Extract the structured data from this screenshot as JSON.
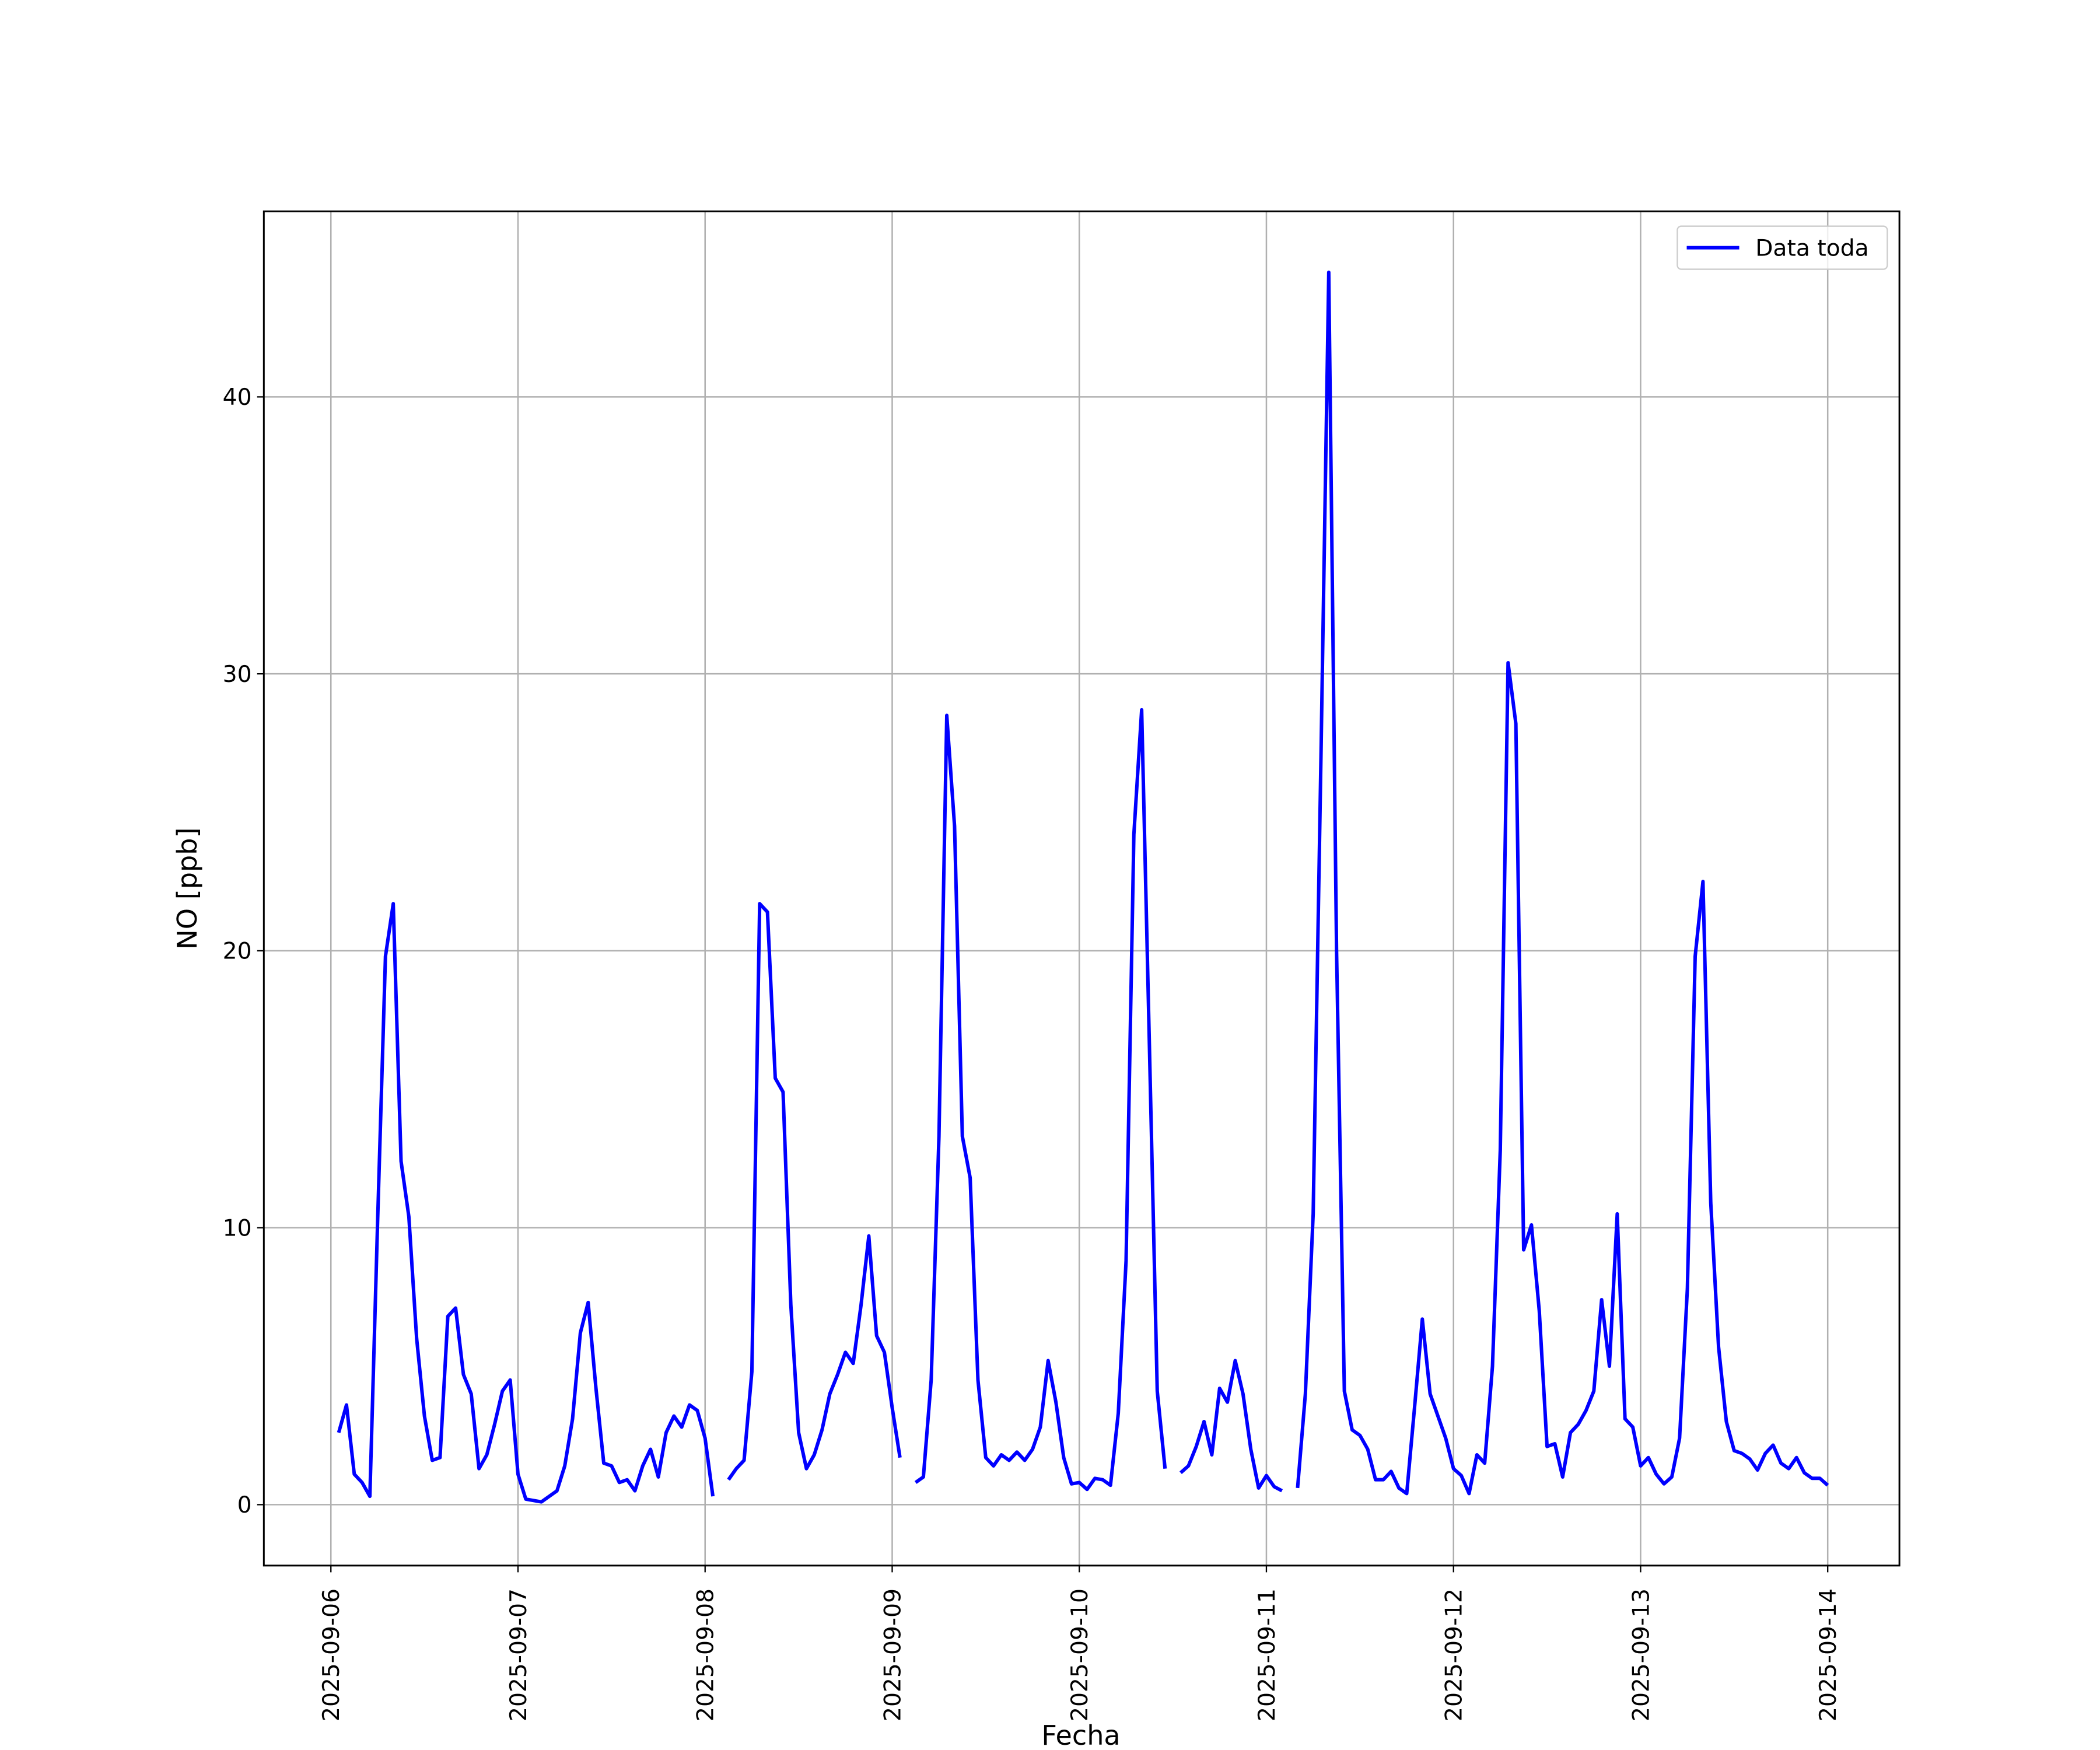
{
  "chart_data": {
    "type": "line",
    "xlabel": "Fecha",
    "ylabel": "NO [ppb]",
    "x": [
      "2025-09-06 01:00",
      "2025-09-06 02:00",
      "2025-09-06 03:00",
      "2025-09-06 04:00",
      "2025-09-06 05:00",
      "2025-09-06 06:00",
      "2025-09-06 07:00",
      "2025-09-06 08:00",
      "2025-09-06 09:00",
      "2025-09-06 10:00",
      "2025-09-06 11:00",
      "2025-09-06 12:00",
      "2025-09-06 13:00",
      "2025-09-06 14:00",
      "2025-09-06 15:00",
      "2025-09-06 16:00",
      "2025-09-06 17:00",
      "2025-09-06 18:00",
      "2025-09-06 19:00",
      "2025-09-06 20:00",
      "2025-09-06 21:00",
      "2025-09-06 22:00",
      "2025-09-06 23:00",
      "2025-09-07 00:00",
      "2025-09-07 01:00",
      "2025-09-07 02:00",
      "2025-09-07 03:00",
      "2025-09-07 04:00",
      "2025-09-07 05:00",
      "2025-09-07 06:00",
      "2025-09-07 07:00",
      "2025-09-07 08:00",
      "2025-09-07 09:00",
      "2025-09-07 10:00",
      "2025-09-07 11:00",
      "2025-09-07 12:00",
      "2025-09-07 13:00",
      "2025-09-07 14:00",
      "2025-09-07 15:00",
      "2025-09-07 16:00",
      "2025-09-07 17:00",
      "2025-09-07 18:00",
      "2025-09-07 19:00",
      "2025-09-07 20:00",
      "2025-09-07 21:00",
      "2025-09-07 22:00",
      "2025-09-07 23:00",
      "2025-09-08 00:00",
      "2025-09-08 01:00",
      "2025-09-08 02:00",
      "2025-09-08 03:00",
      "2025-09-08 04:00",
      "2025-09-08 05:00",
      "2025-09-08 06:00",
      "2025-09-08 07:00",
      "2025-09-08 08:00",
      "2025-09-08 09:00",
      "2025-09-08 10:00",
      "2025-09-08 11:00",
      "2025-09-08 12:00",
      "2025-09-08 13:00",
      "2025-09-08 14:00",
      "2025-09-08 15:00",
      "2025-09-08 16:00",
      "2025-09-08 17:00",
      "2025-09-08 18:00",
      "2025-09-08 19:00",
      "2025-09-08 20:00",
      "2025-09-08 21:00",
      "2025-09-08 22:00",
      "2025-09-08 23:00",
      "2025-09-09 00:00",
      "2025-09-09 01:00",
      "2025-09-09 02:00",
      "2025-09-09 03:00",
      "2025-09-09 04:00",
      "2025-09-09 05:00",
      "2025-09-09 06:00",
      "2025-09-09 07:00",
      "2025-09-09 08:00",
      "2025-09-09 09:00",
      "2025-09-09 10:00",
      "2025-09-09 11:00",
      "2025-09-09 12:00",
      "2025-09-09 13:00",
      "2025-09-09 14:00",
      "2025-09-09 15:00",
      "2025-09-09 16:00",
      "2025-09-09 17:00",
      "2025-09-09 18:00",
      "2025-09-09 19:00",
      "2025-09-09 20:00",
      "2025-09-09 21:00",
      "2025-09-09 22:00",
      "2025-09-09 23:00",
      "2025-09-10 00:00",
      "2025-09-10 01:00",
      "2025-09-10 02:00",
      "2025-09-10 03:00",
      "2025-09-10 04:00",
      "2025-09-10 05:00",
      "2025-09-10 06:00",
      "2025-09-10 07:00",
      "2025-09-10 08:00",
      "2025-09-10 09:00",
      "2025-09-10 10:00",
      "2025-09-10 11:00",
      "2025-09-10 12:00",
      "2025-09-10 13:00",
      "2025-09-10 14:00",
      "2025-09-10 15:00",
      "2025-09-10 16:00",
      "2025-09-10 17:00",
      "2025-09-10 18:00",
      "2025-09-10 19:00",
      "2025-09-10 20:00",
      "2025-09-10 21:00",
      "2025-09-10 22:00",
      "2025-09-10 23:00",
      "2025-09-11 00:00",
      "2025-09-11 01:00",
      "2025-09-11 02:00",
      "2025-09-11 03:00",
      "2025-09-11 04:00",
      "2025-09-11 05:00",
      "2025-09-11 06:00",
      "2025-09-11 07:00",
      "2025-09-11 08:00",
      "2025-09-11 09:00",
      "2025-09-11 10:00",
      "2025-09-11 11:00",
      "2025-09-11 12:00",
      "2025-09-11 13:00",
      "2025-09-11 14:00",
      "2025-09-11 15:00",
      "2025-09-11 16:00",
      "2025-09-11 17:00",
      "2025-09-11 18:00",
      "2025-09-11 19:00",
      "2025-09-11 20:00",
      "2025-09-11 21:00",
      "2025-09-11 22:00",
      "2025-09-11 23:00",
      "2025-09-12 00:00",
      "2025-09-12 01:00",
      "2025-09-12 02:00",
      "2025-09-12 03:00",
      "2025-09-12 04:00",
      "2025-09-12 05:00",
      "2025-09-12 06:00",
      "2025-09-12 07:00",
      "2025-09-12 08:00",
      "2025-09-12 09:00",
      "2025-09-12 10:00",
      "2025-09-12 11:00",
      "2025-09-12 12:00",
      "2025-09-12 13:00",
      "2025-09-12 14:00",
      "2025-09-12 15:00",
      "2025-09-12 16:00",
      "2025-09-12 17:00",
      "2025-09-12 18:00",
      "2025-09-12 19:00",
      "2025-09-12 20:00",
      "2025-09-12 21:00",
      "2025-09-12 22:00",
      "2025-09-12 23:00",
      "2025-09-13 00:00",
      "2025-09-13 01:00",
      "2025-09-13 02:00",
      "2025-09-13 03:00",
      "2025-09-13 04:00",
      "2025-09-13 05:00",
      "2025-09-13 06:00",
      "2025-09-13 07:00",
      "2025-09-13 08:00",
      "2025-09-13 09:00",
      "2025-09-13 10:00",
      "2025-09-13 11:00",
      "2025-09-13 12:00",
      "2025-09-13 13:00",
      "2025-09-13 14:00",
      "2025-09-13 15:00",
      "2025-09-13 16:00",
      "2025-09-13 17:00",
      "2025-09-13 18:00",
      "2025-09-13 19:00",
      "2025-09-13 20:00",
      "2025-09-13 21:00",
      "2025-09-13 22:00",
      "2025-09-13 23:00",
      "2025-09-14 00:00"
    ],
    "series": [
      {
        "name": "Data toda",
        "color": "#0000ff",
        "values": [
          2.6,
          3.6,
          1.1,
          0.8,
          0.3,
          10.3,
          19.8,
          21.7,
          12.4,
          10.4,
          6.0,
          3.2,
          1.6,
          1.7,
          6.8,
          7.1,
          4.7,
          4.0,
          1.3,
          1.8,
          2.9,
          4.1,
          4.5,
          1.1,
          0.2,
          0.15,
          0.1,
          0.3,
          0.5,
          1.4,
          3.1,
          6.2,
          7.3,
          4.2,
          1.5,
          1.4,
          0.8,
          0.9,
          0.5,
          1.4,
          2.0,
          1.0,
          2.6,
          3.2,
          2.8,
          3.6,
          3.4,
          2.4,
          0.3,
          null,
          0.9,
          1.3,
          1.6,
          4.8,
          21.7,
          21.4,
          15.4,
          14.9,
          7.2,
          2.6,
          1.3,
          1.8,
          2.7,
          4.0,
          4.7,
          5.5,
          5.1,
          7.2,
          9.7,
          6.1,
          5.5,
          3.5,
          1.7,
          null,
          0.8,
          1.0,
          4.5,
          13.3,
          28.5,
          24.5,
          13.3,
          11.8,
          4.5,
          1.7,
          1.4,
          1.8,
          1.6,
          1.9,
          1.6,
          2.0,
          2.8,
          5.2,
          3.7,
          1.7,
          0.75,
          0.8,
          0.55,
          0.95,
          0.9,
          0.7,
          3.3,
          8.8,
          24.2,
          28.7,
          16.5,
          4.1,
          1.3,
          null,
          1.15,
          1.4,
          2.1,
          3.0,
          1.8,
          4.2,
          3.7,
          5.2,
          4.0,
          2.0,
          0.6,
          1.05,
          0.65,
          0.5,
          null,
          0.6,
          4.0,
          10.5,
          27.0,
          44.5,
          20.0,
          4.1,
          2.7,
          2.5,
          2.0,
          0.9,
          0.9,
          1.2,
          0.6,
          0.4,
          3.5,
          6.7,
          4.0,
          3.2,
          2.4,
          1.3,
          1.05,
          0.4,
          1.8,
          1.5,
          5.0,
          12.8,
          30.4,
          28.2,
          9.2,
          10.1,
          7.0,
          2.1,
          2.2,
          1.0,
          2.6,
          2.9,
          3.4,
          4.1,
          7.4,
          5.0,
          10.5,
          3.1,
          2.8,
          1.4,
          1.7,
          1.1,
          0.75,
          1.0,
          2.4,
          7.8,
          19.8,
          22.5,
          10.9,
          5.7,
          3.0,
          1.95,
          1.85,
          1.65,
          1.25,
          1.85,
          2.15,
          1.5,
          1.3,
          1.7,
          1.15,
          0.95,
          0.95,
          0.7
        ]
      }
    ],
    "xlim": [
      "2025-09-05 15:24",
      "2025-09-14 09:12"
    ],
    "xticks": [
      "2025-09-06",
      "2025-09-07",
      "2025-09-08",
      "2025-09-09",
      "2025-09-10",
      "2025-09-11",
      "2025-09-12",
      "2025-09-13",
      "2025-09-14"
    ],
    "ylim": [
      -2.2,
      46.7
    ],
    "yticks": [
      0,
      10,
      20,
      30,
      40
    ],
    "grid": true,
    "legend": "upper right"
  }
}
